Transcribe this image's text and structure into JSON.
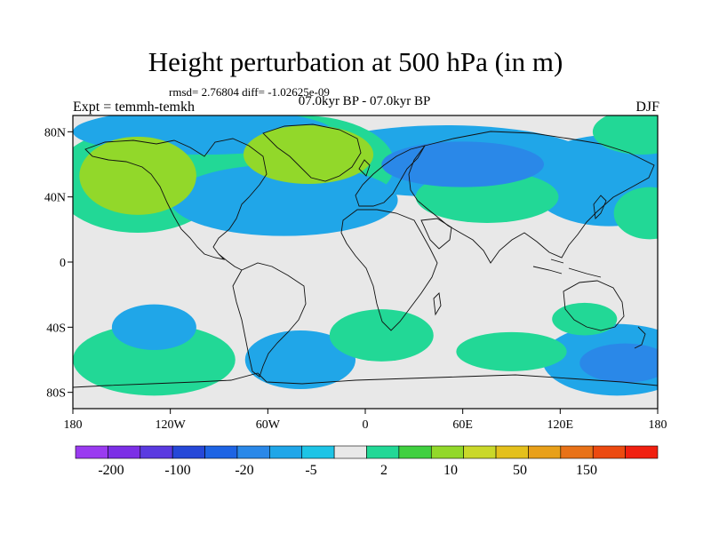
{
  "header": {
    "title": "Height perturbation at 500 hPa (in m)",
    "stats": "rmsd= 2.76804 diff= -1.02625e-09",
    "period": "07.0kyr BP - 07.0kyr BP",
    "experiment": "Expt = temmh-temkh",
    "season": "DJF"
  },
  "map": {
    "lon_range": [
      -180,
      180
    ],
    "lat_range": [
      -90,
      90
    ],
    "x_ticks": [
      "180",
      "120W",
      "60W",
      "0",
      "60E",
      "120E",
      "180"
    ],
    "y_ticks": [
      "80N",
      "40N",
      "0",
      "40S",
      "80S"
    ],
    "background_color": "#e8e8e8"
  },
  "colorbar": {
    "colors": [
      "#9a3bf0",
      "#7c2fe6",
      "#5a3ae0",
      "#2648d8",
      "#1e64e4",
      "#2a88e8",
      "#20a6e8",
      "#1ec4e6",
      "#e8e8e8",
      "#22d896",
      "#40d040",
      "#92d82a",
      "#cad82a",
      "#e4c01c",
      "#e8a01a",
      "#e87218",
      "#ec4a10",
      "#f02010"
    ],
    "labels": [
      "-200",
      "-100",
      "-20",
      "-5",
      "2",
      "10",
      "50",
      "150"
    ]
  },
  "chart_data": {
    "type": "heatmap",
    "title": "Height perturbation at 500 hPa (in m)",
    "xlabel": "",
    "ylabel": "",
    "x_range": [
      -180,
      180
    ],
    "y_range": [
      -90,
      90
    ],
    "anomaly_regions": [
      {
        "center_lon": -140,
        "center_lat": 53,
        "level": "10",
        "color": "#92d82a"
      },
      {
        "center_lon": -140,
        "center_lat": 50,
        "level": "2",
        "color": "#22d896"
      },
      {
        "center_lon": -35,
        "center_lat": 66,
        "level": "10",
        "color": "#92d82a"
      },
      {
        "center_lon": -40,
        "center_lat": 60,
        "level": "2",
        "color": "#22d896"
      },
      {
        "center_lon": -50,
        "center_lat": 38,
        "level": "-5",
        "color": "#20a6e8"
      },
      {
        "center_lon": -100,
        "center_lat": 80,
        "level": "-5",
        "color": "#20a6e8"
      },
      {
        "center_lon": 50,
        "center_lat": 62,
        "level": "-5",
        "color": "#20a6e8"
      },
      {
        "center_lon": 60,
        "center_lat": 60,
        "level": "-20",
        "color": "#2a88e8"
      },
      {
        "center_lon": 75,
        "center_lat": 40,
        "level": "2",
        "color": "#22d896"
      },
      {
        "center_lon": 150,
        "center_lat": 50,
        "level": "-5",
        "color": "#20a6e8"
      },
      {
        "center_lon": 170,
        "center_lat": 80,
        "level": "2",
        "color": "#22d896"
      },
      {
        "center_lon": 175,
        "center_lat": 30,
        "level": "2",
        "color": "#22d896"
      },
      {
        "center_lon": -130,
        "center_lat": -40,
        "level": "-5",
        "color": "#20a6e8"
      },
      {
        "center_lon": -130,
        "center_lat": -60,
        "level": "2",
        "color": "#22d896"
      },
      {
        "center_lon": -40,
        "center_lat": -60,
        "level": "-5",
        "color": "#20a6e8"
      },
      {
        "center_lon": 10,
        "center_lat": -45,
        "level": "2",
        "color": "#22d896"
      },
      {
        "center_lon": 90,
        "center_lat": -55,
        "level": "2",
        "color": "#22d896"
      },
      {
        "center_lon": 155,
        "center_lat": -60,
        "level": "-5",
        "color": "#20a6e8"
      },
      {
        "center_lon": 160,
        "center_lat": -62,
        "level": "-20",
        "color": "#2a88e8"
      },
      {
        "center_lon": 135,
        "center_lat": -35,
        "level": "2",
        "color": "#22d896"
      }
    ]
  }
}
